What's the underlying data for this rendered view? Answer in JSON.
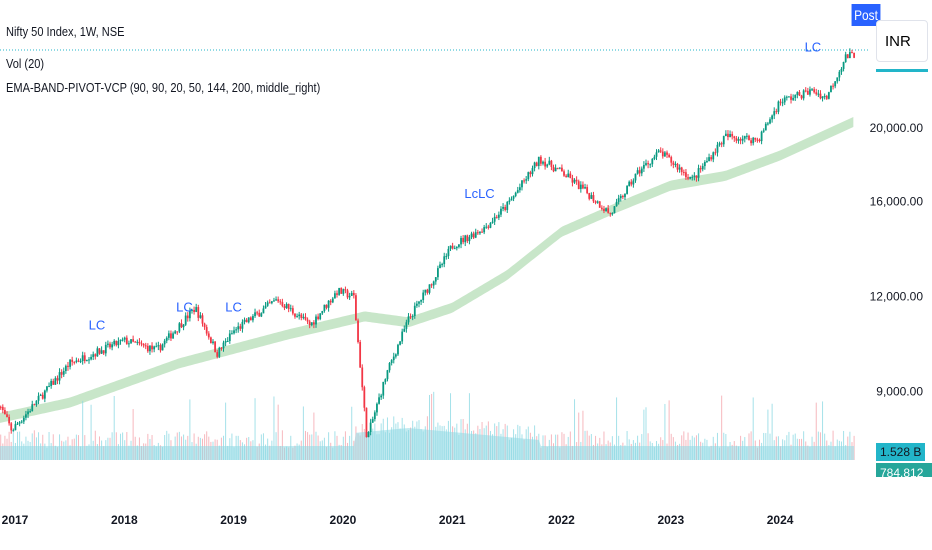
{
  "header": {
    "title": "Nifty 50 Index, 1W, NSE",
    "vol": "Vol (20)",
    "indicator": "EMA-BAND-PIVOT-VCP (90, 90, 20, 50, 144, 200, middle_right)"
  },
  "buttons": {
    "post": "Post",
    "currency": "INR"
  },
  "tags": {
    "volume": "1.528 B",
    "volume_ma": "784.812 M"
  },
  "colors": {
    "up": "#089981",
    "down": "#f23645",
    "band": "#c8e6c9",
    "volume": "#8fd9e3",
    "accent": "#22b5c9"
  },
  "chart_data": {
    "type": "candlestick",
    "title": "Nifty 50 Index, 1W, NSE",
    "yscale": "log",
    "yticks": [
      {
        "v": 20000,
        "label": "20,000.00"
      },
      {
        "v": 16000,
        "label": "16,000.00"
      },
      {
        "v": 12000,
        "label": "12,000.00"
      },
      {
        "v": 9000,
        "label": "9,000.00"
      }
    ],
    "xticks": [
      {
        "v": 2017,
        "label": "2017"
      },
      {
        "v": 2018,
        "label": "2018"
      },
      {
        "v": 2019,
        "label": "2019"
      },
      {
        "v": 2020,
        "label": "2020"
      },
      {
        "v": 2021,
        "label": "2021"
      },
      {
        "v": 2022,
        "label": "2022"
      },
      {
        "v": 2023,
        "label": "2023"
      },
      {
        "v": 2024,
        "label": "2024"
      }
    ],
    "price_anchors": [
      [
        2016.85,
        8700
      ],
      [
        2016.97,
        8000
      ],
      [
        2017.5,
        9800
      ],
      [
        2018.0,
        10500
      ],
      [
        2018.3,
        10200
      ],
      [
        2018.65,
        11600
      ],
      [
        2018.85,
        10100
      ],
      [
        2019.0,
        10800
      ],
      [
        2019.4,
        11900
      ],
      [
        2019.7,
        11000
      ],
      [
        2019.95,
        12200
      ],
      [
        2020.1,
        12000
      ],
      [
        2020.22,
        7800
      ],
      [
        2020.4,
        9500
      ],
      [
        2020.6,
        11200
      ],
      [
        2020.85,
        12800
      ],
      [
        2021.0,
        14000
      ],
      [
        2021.3,
        14800
      ],
      [
        2021.5,
        15800
      ],
      [
        2021.8,
        18200
      ],
      [
        2022.0,
        17500
      ],
      [
        2022.2,
        16600
      ],
      [
        2022.45,
        15400
      ],
      [
        2022.7,
        17500
      ],
      [
        2022.9,
        18600
      ],
      [
        2023.2,
        17100
      ],
      [
        2023.5,
        19500
      ],
      [
        2023.8,
        19300
      ],
      [
        2024.0,
        21700
      ],
      [
        2024.3,
        22400
      ],
      [
        2024.42,
        21900
      ],
      [
        2024.6,
        24800
      ],
      [
        2024.68,
        25000
      ]
    ],
    "band_anchors": [
      [
        2016.85,
        8300
      ],
      [
        2017.5,
        8700
      ],
      [
        2018.5,
        9800
      ],
      [
        2019.5,
        10700
      ],
      [
        2020.2,
        11300
      ],
      [
        2020.6,
        11100
      ],
      [
        2021.0,
        11600
      ],
      [
        2021.5,
        12800
      ],
      [
        2022.0,
        14600
      ],
      [
        2022.5,
        15700
      ],
      [
        2023.0,
        16800
      ],
      [
        2023.5,
        17300
      ],
      [
        2024.0,
        18400
      ],
      [
        2024.68,
        20400
      ]
    ],
    "annotations": [
      {
        "x": 2017.75,
        "v": 10600,
        "label": "LC"
      },
      {
        "x": 2018.55,
        "v": 11200,
        "label": "LC"
      },
      {
        "x": 2019.0,
        "v": 11200,
        "label": "LC"
      },
      {
        "x": 2021.25,
        "v": 15800,
        "label": "LcLC"
      },
      {
        "x": 2024.3,
        "v": 24600,
        "label": "LC"
      }
    ],
    "last_price": 25000
  }
}
